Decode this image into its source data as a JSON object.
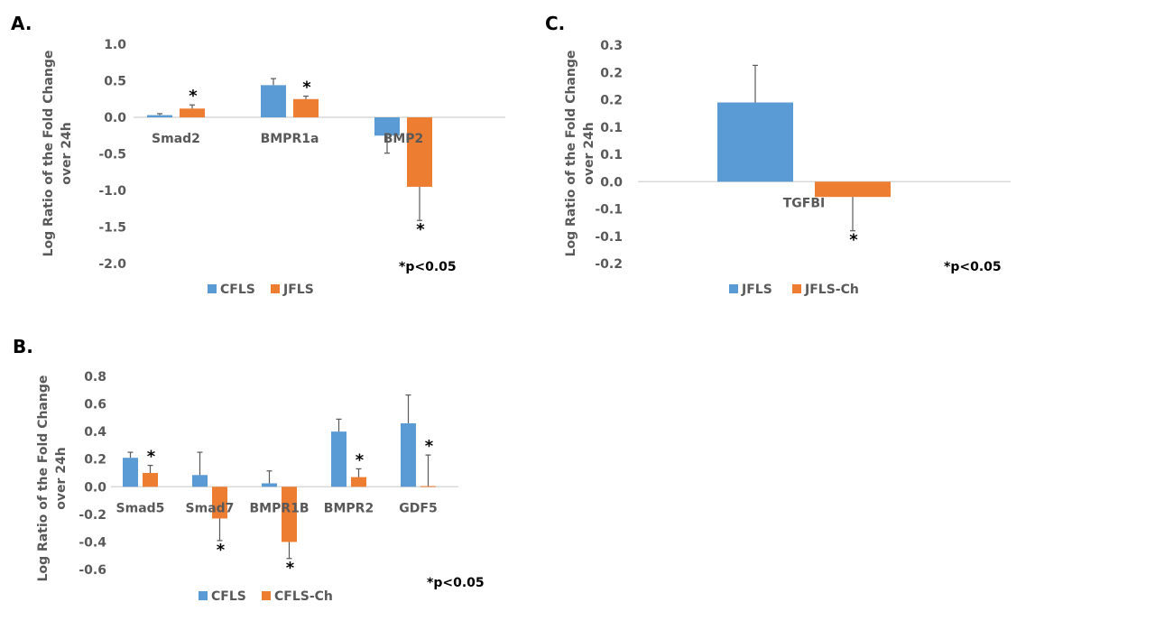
{
  "chart_data": [
    {
      "panel": "A.",
      "type": "bar",
      "ylabel_line1": "Log Ratio of the Fold Change",
      "ylabel_line2": "over 24h",
      "ylim": [
        -2.0,
        1.0
      ],
      "yticks": [
        1.0,
        0.5,
        0.0,
        -0.5,
        -1.0,
        -1.5,
        -2.0
      ],
      "ytick_labels": [
        "1.0",
        "0.5",
        "0.0",
        "-0.5",
        "-1.0",
        "-1.5",
        "-2.0"
      ],
      "categories": [
        "Smad2",
        "BMPR1a",
        "BMP2"
      ],
      "series": [
        {
          "name": "CFLS",
          "color": "#5b9bd5",
          "values": [
            0.03,
            0.44,
            -0.25
          ],
          "errors": [
            0.02,
            0.09,
            0.24
          ],
          "significant": [
            false,
            false,
            false
          ]
        },
        {
          "name": "JFLS",
          "color": "#ed7d31",
          "values": [
            0.12,
            0.25,
            -0.95
          ],
          "errors": [
            0.05,
            0.04,
            0.46
          ],
          "significant": [
            true,
            true,
            true
          ]
        }
      ],
      "note": "*p<0.05",
      "grid": false,
      "legend": "bottom"
    },
    {
      "panel": "B.",
      "type": "bar",
      "ylabel_line1": "Log Ratio of the Fold Change",
      "ylabel_line2": "over 24h",
      "ylim": [
        -0.6,
        0.8
      ],
      "yticks": [
        0.8,
        0.6,
        0.4,
        0.2,
        0.0,
        -0.2,
        -0.4,
        -0.6
      ],
      "ytick_labels": [
        "0.8",
        "0.6",
        "0.4",
        "0.2",
        "0.0",
        "-0.2",
        "-0.4",
        "-0.6"
      ],
      "categories": [
        "Smad5",
        "Smad7",
        "BMPR1B",
        "BMPR2",
        "GDF5"
      ],
      "series": [
        {
          "name": "CFLS",
          "color": "#5b9bd5",
          "values": [
            0.21,
            0.085,
            0.025,
            0.4,
            0.46
          ],
          "errors": [
            0.04,
            0.165,
            0.09,
            0.09,
            0.205
          ],
          "significant": [
            false,
            false,
            false,
            false,
            false
          ]
        },
        {
          "name": "CFLS-Ch",
          "color": "#ed7d31",
          "values": [
            0.1,
            -0.23,
            -0.4,
            0.07,
            0.005
          ],
          "errors": [
            0.055,
            0.16,
            0.12,
            0.06,
            0.225
          ],
          "significant": [
            true,
            true,
            true,
            true,
            true
          ]
        }
      ],
      "note": "*p<0.05",
      "grid": false,
      "legend": "bottom"
    },
    {
      "panel": "C.",
      "type": "bar",
      "ylabel_line1": "Log Ratio of the Fold Change",
      "ylabel_line2": "over 24h",
      "ylim": [
        -0.15,
        0.25
      ],
      "yticks": [
        0.25,
        0.2,
        0.15,
        0.1,
        0.05,
        0.0,
        -0.05,
        -0.1,
        -0.15
      ],
      "ytick_labels": [
        "0.3",
        "0.2",
        "0.2",
        "0.1",
        "0.1",
        "0.0",
        "-0.1",
        "-0.1",
        "-0.2"
      ],
      "categories": [
        "TGFBI"
      ],
      "series": [
        {
          "name": "JFLS",
          "color": "#5b9bd5",
          "values": [
            0.145
          ],
          "errors": [
            0.068
          ],
          "significant": [
            false
          ]
        },
        {
          "name": "JFLS-Ch",
          "color": "#ed7d31",
          "values": [
            -0.028
          ],
          "errors": [
            0.062
          ],
          "significant": [
            true
          ]
        }
      ],
      "note": "*p<0.05",
      "grid": false,
      "legend": "bottom"
    }
  ]
}
